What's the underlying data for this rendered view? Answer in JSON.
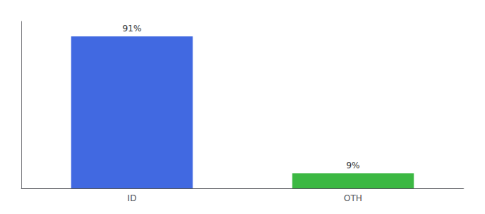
{
  "chart_data": {
    "type": "bar",
    "categories": [
      "ID",
      "OTH"
    ],
    "values": [
      91,
      9
    ],
    "value_labels": [
      "91%",
      "9%"
    ],
    "colors": [
      "#4169e1",
      "#3cb843"
    ],
    "ylim": [
      0,
      100
    ],
    "tick_labels": "x",
    "data_labels": true,
    "grid": false
  }
}
